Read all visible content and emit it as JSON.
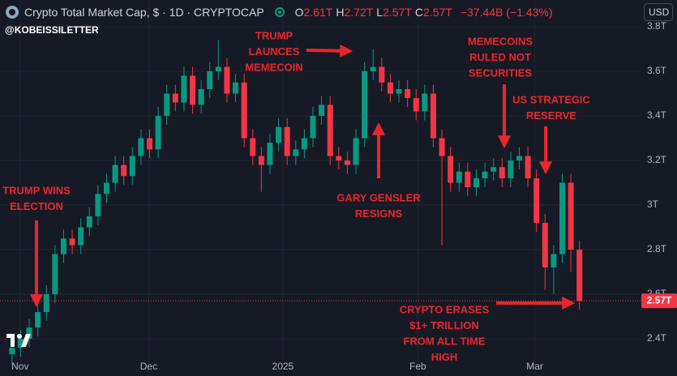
{
  "header": {
    "title": "Crypto Total Market Cap, $ · 1D · CRYPTOCAP",
    "ohlc": [
      {
        "key": "O",
        "value": "2.61T"
      },
      {
        "key": "H",
        "value": "2.72T"
      },
      {
        "key": "L",
        "value": "2.57T"
      },
      {
        "key": "C",
        "value": "2.57T"
      }
    ],
    "change": "−37.44B (−1.43%)",
    "handle": "@KOBEISSILETTER",
    "currency": "USD"
  },
  "chart_data": {
    "type": "candlestick",
    "up_color": "#089981",
    "down_color": "#f23645",
    "grid": true,
    "ylim": [
      2.233,
      3.92
    ],
    "yticks": [
      {
        "value": 2.4,
        "label": "2.4T"
      },
      {
        "value": 2.6,
        "label": "2.6T"
      },
      {
        "value": 2.8,
        "label": "2.8T"
      },
      {
        "value": 3.0,
        "label": "3T"
      },
      {
        "value": 3.2,
        "label": "3.2T"
      },
      {
        "value": 3.4,
        "label": "3.4T"
      },
      {
        "value": 3.6,
        "label": "3.6T"
      },
      {
        "value": 3.8,
        "label": "3.8T"
      }
    ],
    "xlim": [
      -1.4,
      73.1
    ],
    "xticks": [
      {
        "value": 0.94,
        "label": "Nov"
      },
      {
        "value": 15.9,
        "label": "Dec"
      },
      {
        "value": 31.5,
        "label": "2025"
      },
      {
        "value": 47.2,
        "label": "Feb"
      },
      {
        "value": 60.8,
        "label": "Mar"
      }
    ],
    "last_price": {
      "value": 2.57,
      "label": "2.57T"
    },
    "candles": [
      {
        "open": 2.33,
        "high": 2.4,
        "low": 2.29,
        "close": 2.36
      },
      {
        "open": 2.36,
        "high": 2.44,
        "low": 2.32,
        "close": 2.4
      },
      {
        "open": 2.4,
        "high": 2.49,
        "low": 2.36,
        "close": 2.45
      },
      {
        "open": 2.45,
        "high": 2.56,
        "low": 2.41,
        "close": 2.52
      },
      {
        "open": 2.52,
        "high": 2.64,
        "low": 2.48,
        "close": 2.6
      },
      {
        "open": 2.6,
        "high": 2.82,
        "low": 2.56,
        "close": 2.78
      },
      {
        "open": 2.78,
        "high": 2.89,
        "low": 2.74,
        "close": 2.85
      },
      {
        "open": 2.85,
        "high": 2.89,
        "low": 2.78,
        "close": 2.82
      },
      {
        "open": 2.82,
        "high": 2.94,
        "low": 2.78,
        "close": 2.9
      },
      {
        "open": 2.9,
        "high": 2.99,
        "low": 2.86,
        "close": 2.95
      },
      {
        "open": 2.95,
        "high": 3.09,
        "low": 2.91,
        "close": 3.05
      },
      {
        "open": 3.05,
        "high": 3.14,
        "low": 3.01,
        "close": 3.1
      },
      {
        "open": 3.1,
        "high": 3.22,
        "low": 3.06,
        "close": 3.18
      },
      {
        "open": 3.18,
        "high": 3.22,
        "low": 3.09,
        "close": 3.13
      },
      {
        "open": 3.13,
        "high": 3.26,
        "low": 3.09,
        "close": 3.22
      },
      {
        "open": 3.22,
        "high": 3.34,
        "low": 3.18,
        "close": 3.3
      },
      {
        "open": 3.3,
        "high": 3.34,
        "low": 3.21,
        "close": 3.25
      },
      {
        "open": 3.25,
        "high": 3.44,
        "low": 3.21,
        "close": 3.4
      },
      {
        "open": 3.4,
        "high": 3.54,
        "low": 3.36,
        "close": 3.5
      },
      {
        "open": 3.5,
        "high": 3.54,
        "low": 3.42,
        "close": 3.46
      },
      {
        "open": 3.46,
        "high": 3.62,
        "low": 3.42,
        "close": 3.58
      },
      {
        "open": 3.58,
        "high": 3.62,
        "low": 3.41,
        "close": 3.45
      },
      {
        "open": 3.45,
        "high": 3.56,
        "low": 3.41,
        "close": 3.52
      },
      {
        "open": 3.52,
        "high": 3.64,
        "low": 3.48,
        "close": 3.6
      },
      {
        "open": 3.6,
        "high": 3.74,
        "low": 3.56,
        "close": 3.62
      },
      {
        "open": 3.62,
        "high": 3.66,
        "low": 3.46,
        "close": 3.5
      },
      {
        "open": 3.5,
        "high": 3.59,
        "low": 3.46,
        "close": 3.55
      },
      {
        "open": 3.55,
        "high": 3.59,
        "low": 3.26,
        "close": 3.3
      },
      {
        "open": 3.3,
        "high": 3.34,
        "low": 3.18,
        "close": 3.22
      },
      {
        "open": 3.22,
        "high": 3.26,
        "low": 3.06,
        "close": 3.18
      },
      {
        "open": 3.18,
        "high": 3.32,
        "low": 3.14,
        "close": 3.28
      },
      {
        "open": 3.28,
        "high": 3.39,
        "low": 3.24,
        "close": 3.35
      },
      {
        "open": 3.35,
        "high": 3.39,
        "low": 3.18,
        "close": 3.22
      },
      {
        "open": 3.22,
        "high": 3.29,
        "low": 3.18,
        "close": 3.25
      },
      {
        "open": 3.25,
        "high": 3.34,
        "low": 3.21,
        "close": 3.3
      },
      {
        "open": 3.3,
        "high": 3.44,
        "low": 3.26,
        "close": 3.4
      },
      {
        "open": 3.4,
        "high": 3.49,
        "low": 3.36,
        "close": 3.45
      },
      {
        "open": 3.45,
        "high": 3.49,
        "low": 3.18,
        "close": 3.22
      },
      {
        "open": 3.22,
        "high": 3.26,
        "low": 3.16,
        "close": 3.2
      },
      {
        "open": 3.2,
        "high": 3.24,
        "low": 3.14,
        "close": 3.18
      },
      {
        "open": 3.18,
        "high": 3.34,
        "low": 3.14,
        "close": 3.3
      },
      {
        "open": 3.3,
        "high": 3.64,
        "low": 3.26,
        "close": 3.6
      },
      {
        "open": 3.6,
        "high": 3.7,
        "low": 3.56,
        "close": 3.62
      },
      {
        "open": 3.62,
        "high": 3.66,
        "low": 3.51,
        "close": 3.55
      },
      {
        "open": 3.55,
        "high": 3.59,
        "low": 3.46,
        "close": 3.5
      },
      {
        "open": 3.5,
        "high": 3.56,
        "low": 3.46,
        "close": 3.52
      },
      {
        "open": 3.52,
        "high": 3.56,
        "low": 3.44,
        "close": 3.48
      },
      {
        "open": 3.48,
        "high": 3.52,
        "low": 3.38,
        "close": 3.42
      },
      {
        "open": 3.42,
        "high": 3.54,
        "low": 3.38,
        "close": 3.5
      },
      {
        "open": 3.5,
        "high": 3.54,
        "low": 3.26,
        "close": 3.3
      },
      {
        "open": 3.3,
        "high": 3.34,
        "low": 2.82,
        "close": 3.22
      },
      {
        "open": 3.22,
        "high": 3.26,
        "low": 3.06,
        "close": 3.1
      },
      {
        "open": 3.1,
        "high": 3.19,
        "low": 3.06,
        "close": 3.15
      },
      {
        "open": 3.15,
        "high": 3.19,
        "low": 3.04,
        "close": 3.08
      },
      {
        "open": 3.08,
        "high": 3.16,
        "low": 3.04,
        "close": 3.12
      },
      {
        "open": 3.12,
        "high": 3.19,
        "low": 3.08,
        "close": 3.15
      },
      {
        "open": 3.15,
        "high": 3.21,
        "low": 3.11,
        "close": 3.17
      },
      {
        "open": 3.17,
        "high": 3.21,
        "low": 3.08,
        "close": 3.12
      },
      {
        "open": 3.12,
        "high": 3.24,
        "low": 3.08,
        "close": 3.2
      },
      {
        "open": 3.2,
        "high": 3.26,
        "low": 3.16,
        "close": 3.22
      },
      {
        "open": 3.22,
        "high": 3.26,
        "low": 3.08,
        "close": 3.12
      },
      {
        "open": 3.12,
        "high": 3.16,
        "low": 2.88,
        "close": 2.92
      },
      {
        "open": 2.92,
        "high": 2.96,
        "low": 2.62,
        "close": 2.72
      },
      {
        "open": 2.72,
        "high": 2.82,
        "low": 2.6,
        "close": 2.78
      },
      {
        "open": 2.78,
        "high": 3.14,
        "low": 2.74,
        "close": 3.1
      },
      {
        "open": 3.1,
        "high": 3.14,
        "low": 2.7,
        "close": 2.8
      },
      {
        "open": 2.8,
        "high": 2.84,
        "low": 2.53,
        "close": 2.57
      }
    ],
    "annotations": [
      {
        "lines": [
          "TRUMP WINS",
          "ELECTION"
        ]
      },
      {
        "lines": [
          "TRUMP",
          "LAUNCES",
          "MEMECOIN"
        ]
      },
      {
        "lines": [
          "GARY GENSLER",
          "RESIGNS"
        ]
      },
      {
        "lines": [
          "MEMECOINS",
          "RULED NOT",
          "SECURITIES"
        ]
      },
      {
        "lines": [
          "US STRATEGIC",
          "RESERVE"
        ]
      },
      {
        "lines": [
          "CRYPTO ERASES",
          "$1+ TRILLION",
          "FROM ALL TIME",
          "HIGH"
        ]
      }
    ]
  }
}
